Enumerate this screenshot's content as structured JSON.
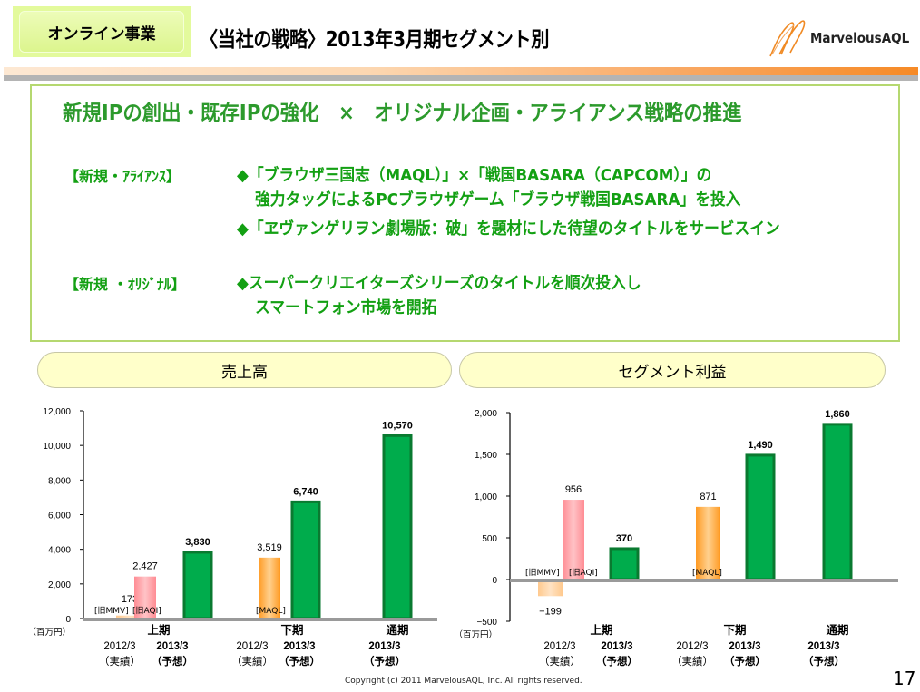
{
  "header": {
    "segment_badge": "オンライン事業",
    "title": "〈当社の戦略〉2013年3月期セグメント別",
    "logo_text": "MarvelousAQL",
    "logo_icon": "swirl-m-logo-icon"
  },
  "strategy": {
    "headline": "新規IPの創出・既存IPの強化　×　オリジナル企画・アライアンス戦略の推進",
    "sections": [
      {
        "label": "【新規・ｱﾗｲｱﾝｽ】",
        "lines": [
          "◆「ブラウザ三国志（MAQL）」×「戦国BASARA（CAPCOM）」の",
          "強力タッグによるPCブラウザゲーム「ブラウザ戦国BASARA」を投入",
          "◆「ヱヴァンゲリヲン劇場版：破」を題材にした待望のタイトルをサービスイン"
        ]
      },
      {
        "label": "【新規 ・ｵﾘｼﾞﾅﾙ】",
        "lines": [
          "◆スーパークリエイターズシリーズのタイトルを順次投入し",
          "スマートフォン市場を開拓"
        ]
      }
    ]
  },
  "panels": {
    "sales_title": "売上高",
    "profit_title": "セグメント利益"
  },
  "colors": {
    "green_fill": "#00ac4c",
    "green_border": "#0a7a30",
    "pink": "#ff9aa0",
    "orange": "#ffa033",
    "peach": "#ffcf9a",
    "headline_green": "#2c9a2c",
    "text_green": "#13a013"
  },
  "chart_data": [
    {
      "type": "bar",
      "title": "売上高",
      "unit_label": "（百万円）",
      "ylim": [
        0,
        12000
      ],
      "yticks": [
        0,
        2000,
        4000,
        6000,
        8000,
        10000,
        12000
      ],
      "ytick_labels": [
        "0",
        "2,000",
        "4,000",
        "6,000",
        "8,000",
        "10,000",
        "12,000"
      ],
      "groups": [
        {
          "name": "上期",
          "sublabels": [
            [
              "2012/3",
              "（実績）"
            ],
            [
              "2013/3",
              "（予想）"
            ]
          ]
        },
        {
          "name": "下期",
          "sublabels": [
            [
              "2012/3",
              "（実績）"
            ],
            [
              "2013/3",
              "（予想）"
            ]
          ]
        },
        {
          "name": "通期",
          "sublabels": [
            [
              "2013/3",
              "（予想）"
            ]
          ]
        }
      ],
      "bars": [
        {
          "group": "上期",
          "period": "2012/3 実績",
          "segment": "旧MMV",
          "tag": "[旧MMV]",
          "value": 173,
          "label": "173",
          "style": "peach"
        },
        {
          "group": "上期",
          "period": "2012/3 実績",
          "segment": "旧AQI",
          "tag": "[旧AQI]",
          "value": 2427,
          "label": "2,427",
          "style": "pink"
        },
        {
          "group": "上期",
          "period": "2013/3 予想",
          "value": 3830,
          "label": "3,830",
          "style": "green"
        },
        {
          "group": "下期",
          "period": "2012/3 実績",
          "segment": "MAQL",
          "tag": "[MAQL]",
          "value": 3519,
          "label": "3,519",
          "style": "orange"
        },
        {
          "group": "下期",
          "period": "2013/3 予想",
          "value": 6740,
          "label": "6,740",
          "style": "green"
        },
        {
          "group": "通期",
          "period": "2013/3 予想",
          "value": 10570,
          "label": "10,570",
          "style": "green"
        }
      ]
    },
    {
      "type": "bar",
      "title": "セグメント利益",
      "unit_label": "（百万円）",
      "ylim": [
        -500,
        2000
      ],
      "yticks": [
        -500,
        0,
        500,
        1000,
        1500,
        2000
      ],
      "ytick_labels": [
        "−500",
        "0",
        "500",
        "1,000",
        "1,500",
        "2,000"
      ],
      "groups": [
        {
          "name": "上期",
          "sublabels": [
            [
              "2012/3",
              "（実績）"
            ],
            [
              "2013/3",
              "（予想）"
            ]
          ]
        },
        {
          "name": "下期",
          "sublabels": [
            [
              "2012/3",
              "（実績）"
            ],
            [
              "2013/3",
              "（予想）"
            ]
          ]
        },
        {
          "name": "通期",
          "sublabels": [
            [
              "2013/3",
              "（予想）"
            ]
          ]
        }
      ],
      "bars": [
        {
          "group": "上期",
          "period": "2012/3 実績",
          "segment": "旧MMV",
          "tag": "[旧MMV]",
          "value": -199,
          "label": "−199",
          "style": "peach"
        },
        {
          "group": "上期",
          "period": "2012/3 実績",
          "segment": "旧AQI",
          "tag": "[旧AQI]",
          "value": 956,
          "label": "956",
          "style": "pink"
        },
        {
          "group": "上期",
          "period": "2013/3 予想",
          "value": 370,
          "label": "370",
          "style": "green"
        },
        {
          "group": "下期",
          "period": "2012/3 実績",
          "segment": "MAQL",
          "tag": "[MAQL]",
          "value": 871,
          "label": "871",
          "style": "orange"
        },
        {
          "group": "下期",
          "period": "2013/3 予想",
          "value": 1490,
          "label": "1,490",
          "style": "green"
        },
        {
          "group": "通期",
          "period": "2013/3 予想",
          "value": 1860,
          "label": "1,860",
          "style": "green"
        }
      ]
    }
  ],
  "footer": {
    "copyright": "Copyright (c) 2011 MarvelousAQL, Inc. All rights reserved.",
    "page_number": "17"
  }
}
